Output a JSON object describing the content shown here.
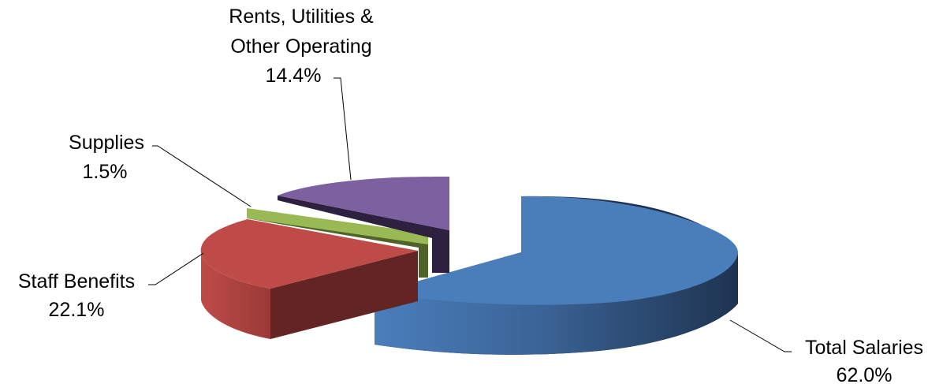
{
  "chart_data": {
    "type": "pie",
    "style": "3d-exploded",
    "title": "",
    "legend": "none",
    "slices": [
      {
        "label": "Total Salaries",
        "value": 62.0,
        "value_label": "62.0%",
        "color": "#4A7EBB"
      },
      {
        "label": "Staff Benefits",
        "value": 22.1,
        "value_label": "22.1%",
        "color": "#BE4B48"
      },
      {
        "label": "Supplies",
        "value": 1.5,
        "value_label": "1.5%",
        "color": "#98B954"
      },
      {
        "label_lines": [
          "Rents, Utilities &",
          "Other Operating"
        ],
        "value": 14.4,
        "value_label": "14.4%",
        "color": "#7D60A0"
      }
    ]
  }
}
